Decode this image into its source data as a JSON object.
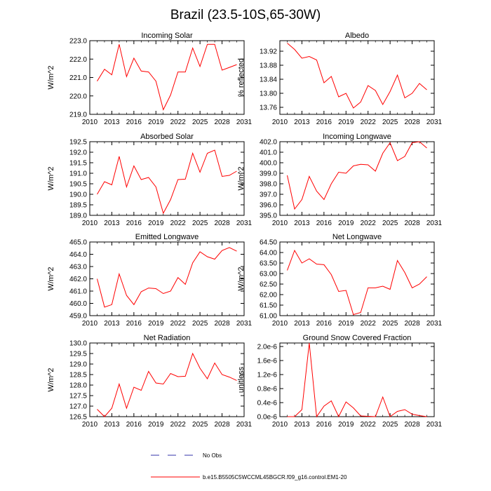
{
  "title": "Brazil (23.5-10S,65-30W)",
  "legend": {
    "no_obs_label": "No Obs",
    "model_label": "b.e15.B5505C5WCCML45BGCR.f09_g16.control.EM1-20"
  },
  "colors": {
    "model": "#ff0000",
    "no_obs": "#3333aa",
    "axis": "#000000"
  },
  "chart_data": [
    {
      "type": "line",
      "title": "Incoming Solar",
      "ylabel": "W/m^2",
      "xlim": [
        2010,
        2031
      ],
      "ylim": [
        219.0,
        223.0
      ],
      "xticks": [
        2010,
        2013,
        2016,
        2019,
        2022,
        2025,
        2028,
        2031
      ],
      "yticks": [
        219.0,
        220.0,
        221.0,
        222.0,
        223.0
      ],
      "ytick_labels": [
        "219.0",
        "220.0",
        "221.0",
        "222.0",
        "223.0"
      ],
      "x": [
        2011,
        2012,
        2013,
        2014,
        2015,
        2016,
        2017,
        2018,
        2019,
        2020,
        2021,
        2022,
        2023,
        2024,
        2025,
        2026,
        2027,
        2028,
        2029,
        2030
      ],
      "values": [
        220.8,
        221.45,
        221.15,
        222.8,
        221.05,
        222.05,
        221.35,
        221.3,
        220.8,
        219.25,
        220.05,
        221.3,
        221.3,
        222.6,
        221.6,
        222.8,
        222.8,
        221.4,
        221.55,
        221.7
      ]
    },
    {
      "type": "line",
      "title": "Albedo",
      "ylabel": "% reflected",
      "xlim": [
        2010,
        2031
      ],
      "ylim": [
        13.74,
        13.95
      ],
      "xticks": [
        2010,
        2013,
        2016,
        2019,
        2022,
        2025,
        2028,
        2031
      ],
      "yticks": [
        13.76,
        13.8,
        13.84,
        13.88,
        13.92
      ],
      "ytick_labels": [
        "13.76",
        "13.80",
        "13.84",
        "13.88",
        "13.92"
      ],
      "x": [
        2011,
        2012,
        2013,
        2014,
        2015,
        2016,
        2017,
        2018,
        2019,
        2020,
        2021,
        2022,
        2023,
        2024,
        2025,
        2026,
        2027,
        2028,
        2029,
        2030
      ],
      "values": [
        13.943,
        13.925,
        13.9,
        13.905,
        13.895,
        13.83,
        13.848,
        13.79,
        13.8,
        13.758,
        13.775,
        13.822,
        13.808,
        13.768,
        13.805,
        13.852,
        13.787,
        13.8,
        13.828,
        13.81
      ]
    },
    {
      "type": "line",
      "title": "Absorbed Solar",
      "ylabel": "W/m^2",
      "xlim": [
        2010,
        2031
      ],
      "ylim": [
        189.0,
        192.5
      ],
      "xticks": [
        2010,
        2013,
        2016,
        2019,
        2022,
        2025,
        2028,
        2031
      ],
      "yticks": [
        189.0,
        189.5,
        190.0,
        190.5,
        191.0,
        191.5,
        192.0,
        192.5
      ],
      "ytick_labels": [
        "189.0",
        "189.5",
        "190.0",
        "190.5",
        "191.0",
        "191.5",
        "192.0",
        "192.5"
      ],
      "x": [
        2011,
        2012,
        2013,
        2014,
        2015,
        2016,
        2017,
        2018,
        2019,
        2020,
        2021,
        2022,
        2023,
        2024,
        2025,
        2026,
        2027,
        2028,
        2029,
        2030
      ],
      "values": [
        190.0,
        190.6,
        190.45,
        191.8,
        190.35,
        191.35,
        190.7,
        190.8,
        190.35,
        189.1,
        189.75,
        190.7,
        190.72,
        191.95,
        191.05,
        191.95,
        192.1,
        190.85,
        190.9,
        191.1
      ]
    },
    {
      "type": "line",
      "title": "Incoming Longwave",
      "ylabel": "W/m^2",
      "xlim": [
        2010,
        2031
      ],
      "ylim": [
        395.0,
        402.0
      ],
      "xticks": [
        2010,
        2013,
        2016,
        2019,
        2022,
        2025,
        2028,
        2031
      ],
      "yticks": [
        395.0,
        396.0,
        397.0,
        398.0,
        399.0,
        400.0,
        401.0,
        402.0
      ],
      "ytick_labels": [
        "395.0",
        "396.0",
        "397.0",
        "398.0",
        "399.0",
        "400.0",
        "401.0",
        "402.0"
      ],
      "x": [
        2011,
        2012,
        2013,
        2014,
        2015,
        2016,
        2017,
        2018,
        2019,
        2020,
        2021,
        2022,
        2023,
        2024,
        2025,
        2026,
        2027,
        2028,
        2029,
        2030
      ],
      "values": [
        398.8,
        395.6,
        396.5,
        398.7,
        397.3,
        396.5,
        398.0,
        399.1,
        399.0,
        399.7,
        399.85,
        399.8,
        399.2,
        400.9,
        401.9,
        400.2,
        400.6,
        401.9,
        402.0,
        401.4
      ]
    },
    {
      "type": "line",
      "title": "Emitted Longwave",
      "ylabel": "W/m^2",
      "xlim": [
        2010,
        2031
      ],
      "ylim": [
        459.0,
        465.0
      ],
      "xticks": [
        2010,
        2013,
        2016,
        2019,
        2022,
        2025,
        2028,
        2031
      ],
      "yticks": [
        459.0,
        460.0,
        461.0,
        462.0,
        463.0,
        464.0,
        465.0
      ],
      "ytick_labels": [
        "459.0",
        "460.0",
        "461.0",
        "462.0",
        "463.0",
        "464.0",
        "465.0"
      ],
      "x": [
        2011,
        2012,
        2013,
        2014,
        2015,
        2016,
        2017,
        2018,
        2019,
        2020,
        2021,
        2022,
        2023,
        2024,
        2025,
        2026,
        2027,
        2028,
        2029,
        2030
      ],
      "values": [
        462.0,
        459.7,
        459.9,
        462.4,
        460.65,
        459.9,
        460.95,
        461.25,
        461.2,
        460.8,
        461.0,
        462.1,
        461.55,
        463.3,
        464.2,
        463.8,
        463.6,
        464.3,
        464.55,
        464.25
      ]
    },
    {
      "type": "line",
      "title": "Net Longwave",
      "ylabel": "W/m^2",
      "xlim": [
        2010,
        2031
      ],
      "ylim": [
        61.0,
        64.5
      ],
      "xticks": [
        2010,
        2013,
        2016,
        2019,
        2022,
        2025,
        2028,
        2031
      ],
      "yticks": [
        61.0,
        61.5,
        62.0,
        62.5,
        63.0,
        63.5,
        64.0,
        64.5
      ],
      "ytick_labels": [
        "61.00",
        "61.50",
        "62.00",
        "62.50",
        "63.00",
        "63.50",
        "64.00",
        "64.50"
      ],
      "x": [
        2011,
        2012,
        2013,
        2014,
        2015,
        2016,
        2017,
        2018,
        2019,
        2020,
        2021,
        2022,
        2023,
        2024,
        2025,
        2026,
        2027,
        2028,
        2029,
        2030
      ],
      "values": [
        63.15,
        64.1,
        63.5,
        63.7,
        63.45,
        63.42,
        62.95,
        62.15,
        62.2,
        61.05,
        61.15,
        62.32,
        62.32,
        62.4,
        62.25,
        63.62,
        63.05,
        62.32,
        62.5,
        62.85
      ]
    },
    {
      "type": "line",
      "title": "Net Radiation",
      "ylabel": "W/m^2",
      "xlim": [
        2010,
        2031
      ],
      "ylim": [
        126.5,
        130.0
      ],
      "xticks": [
        2010,
        2013,
        2016,
        2019,
        2022,
        2025,
        2028,
        2031
      ],
      "yticks": [
        126.5,
        127.0,
        127.5,
        128.0,
        128.5,
        129.0,
        129.5,
        130.0
      ],
      "ytick_labels": [
        "126.5",
        "127.0",
        "127.5",
        "128.0",
        "128.5",
        "129.0",
        "129.5",
        "130.0"
      ],
      "x": [
        2011,
        2012,
        2013,
        2014,
        2015,
        2016,
        2017,
        2018,
        2019,
        2020,
        2021,
        2022,
        2023,
        2024,
        2025,
        2026,
        2027,
        2028,
        2029,
        2030
      ],
      "values": [
        126.85,
        126.5,
        126.9,
        128.05,
        126.9,
        127.9,
        127.75,
        128.65,
        128.1,
        128.05,
        128.55,
        128.4,
        128.42,
        129.5,
        128.8,
        128.3,
        129.05,
        128.5,
        128.38,
        128.22
      ]
    },
    {
      "type": "line",
      "title": "Ground Snow Covered Fraction",
      "ylabel": "unitless",
      "xlim": [
        2010,
        2031
      ],
      "ylim": [
        0,
        2.1e-06
      ],
      "xticks": [
        2010,
        2013,
        2016,
        2019,
        2022,
        2025,
        2028,
        2031
      ],
      "yticks": [
        0,
        4e-07,
        8e-07,
        1.2e-06,
        1.6e-06,
        2e-06
      ],
      "ytick_labels": [
        "0.0e-6",
        "0.4e-6",
        "0.8e-6",
        "1.2e-6",
        "1.6e-6",
        "2.0e-6"
      ],
      "x": [
        2011,
        2012,
        2013,
        2014,
        2015,
        2016,
        2017,
        2018,
        2019,
        2020,
        2021,
        2022,
        2023,
        2024,
        2025,
        2026,
        2027,
        2028,
        2029,
        2030
      ],
      "values": [
        0,
        0,
        2e-07,
        2.1e-06,
        0,
        3e-07,
        4.5e-07,
        0,
        4.2e-07,
        2.5e-07,
        2e-08,
        1e-08,
        0,
        5.6e-07,
        0,
        1.5e-07,
        2e-07,
        7e-08,
        3e-08,
        0
      ]
    }
  ]
}
